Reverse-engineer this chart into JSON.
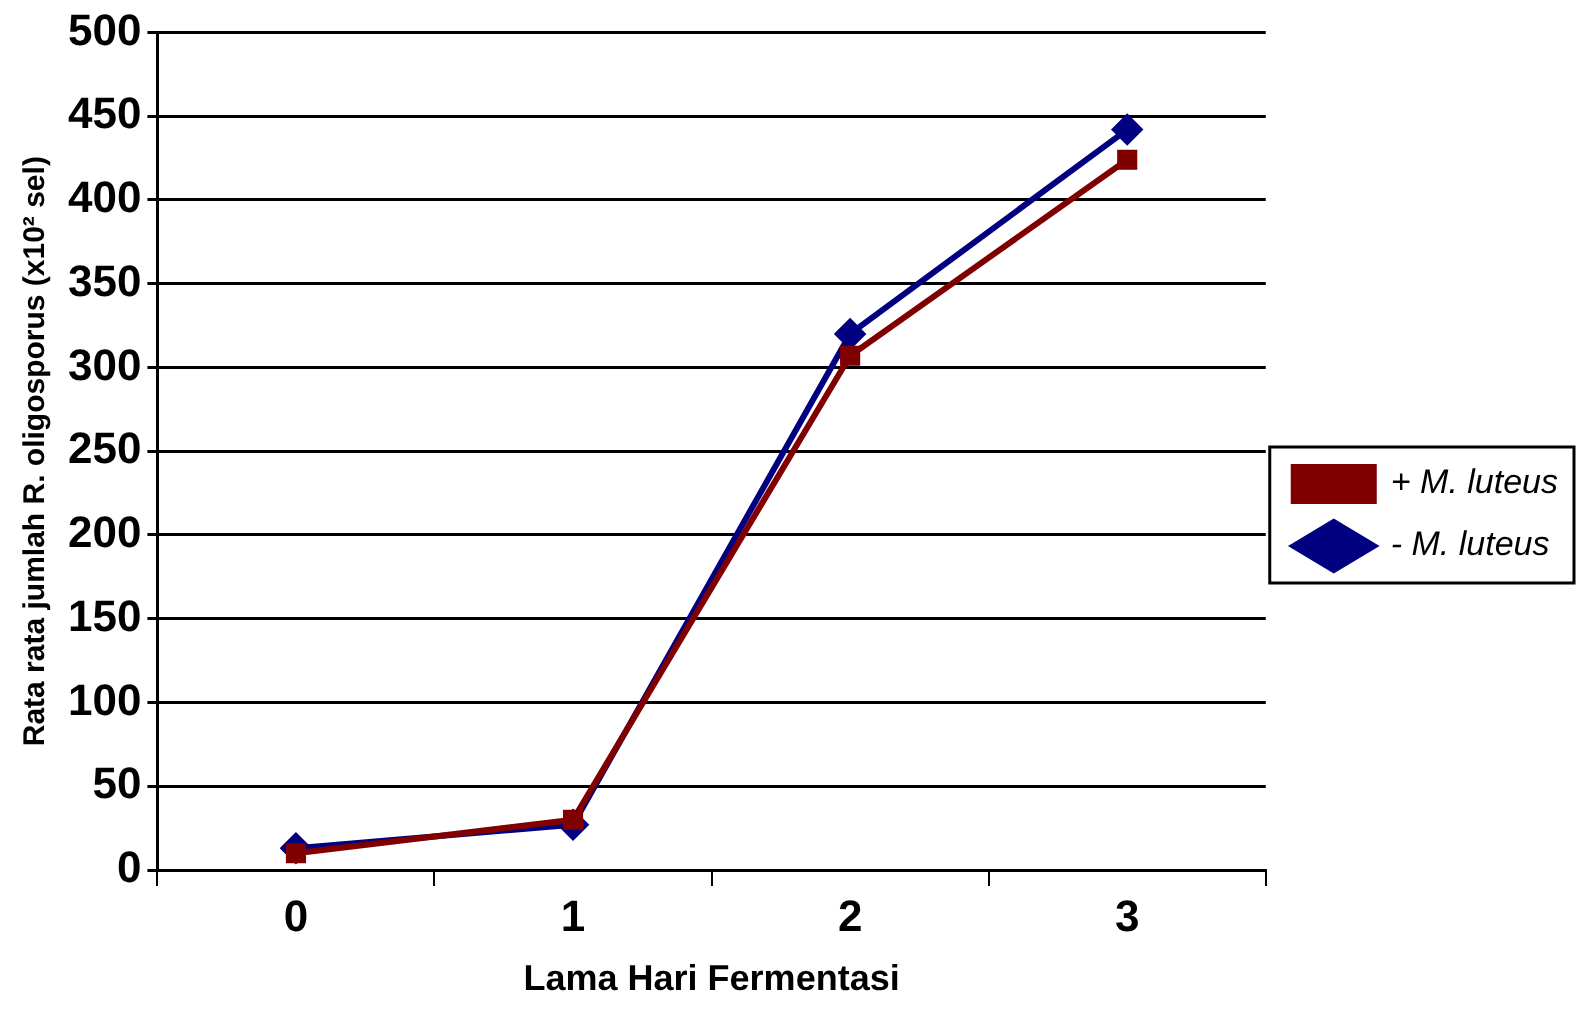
{
  "chart_data": {
    "type": "line",
    "xlabel": "Lama Hari Fermentasi",
    "ylabel": "Rata rata jumlah R. oligosporus (x10² sel)",
    "categories": [
      "0",
      "1",
      "2",
      "3"
    ],
    "series": [
      {
        "name": "- M. luteus",
        "color": "#000080",
        "values": [
          13,
          27,
          320,
          442
        ],
        "marker": "diamond"
      },
      {
        "name": "+ M. luteus",
        "color": "#800000",
        "values": [
          10,
          30,
          307,
          424
        ],
        "marker": "square"
      }
    ],
    "ylim": [
      0,
      500
    ],
    "yticks": [
      0,
      50,
      100,
      150,
      200,
      250,
      300,
      350,
      400,
      450,
      500
    ],
    "grid": "y",
    "legend": "right",
    "line_style": "solid"
  }
}
